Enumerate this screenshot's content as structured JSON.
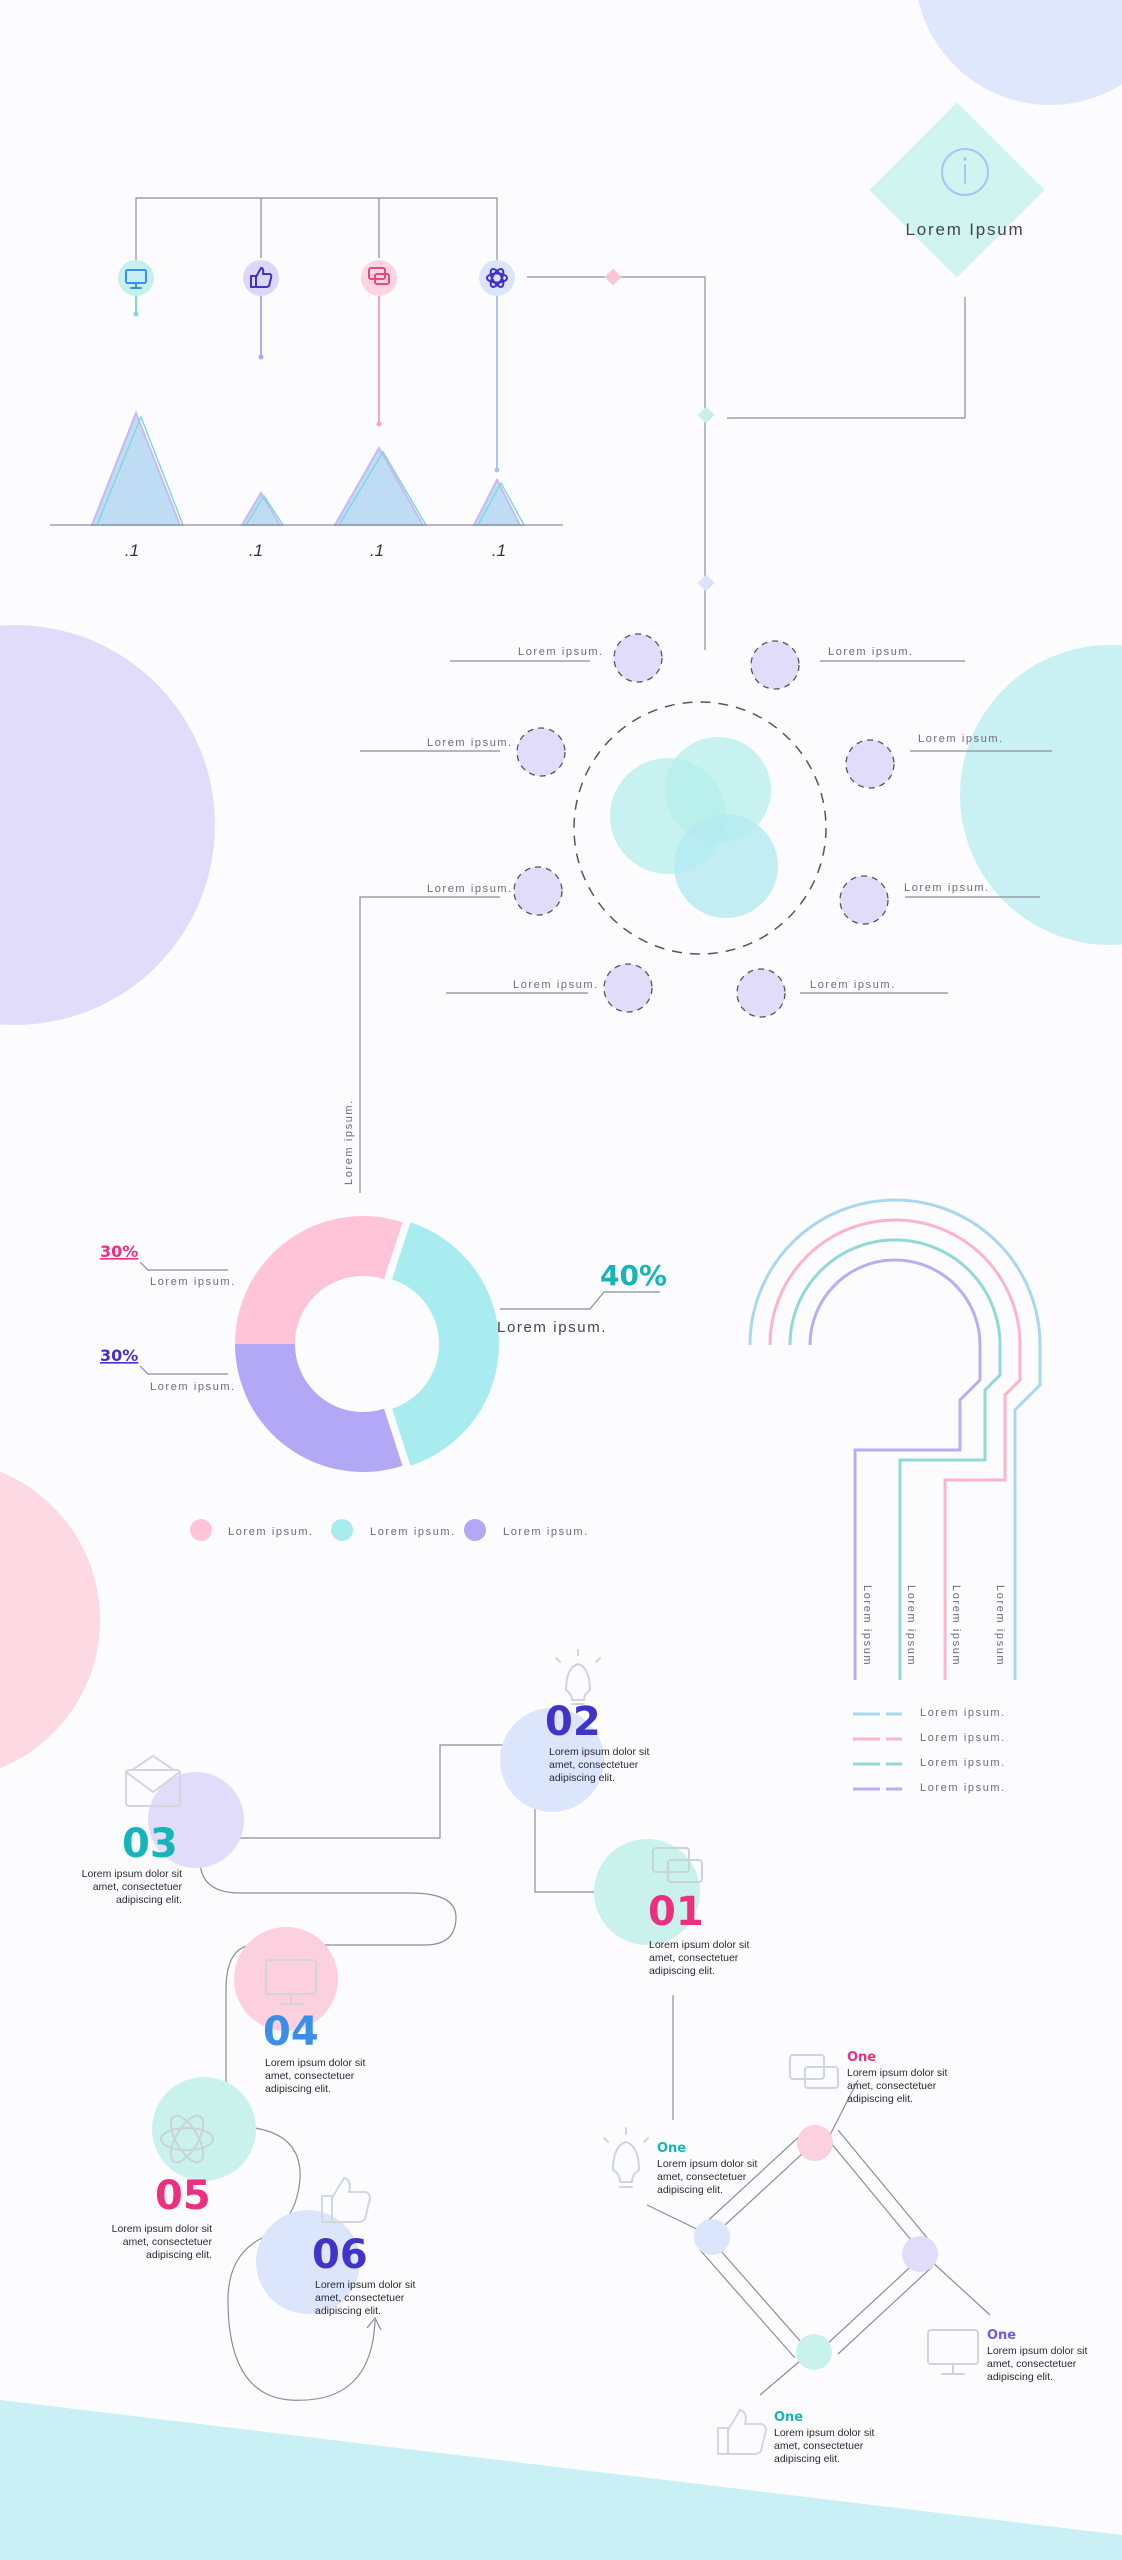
{
  "colors": {
    "pink": "#ff9fbf",
    "teal": "#7fd8dc",
    "lavender": "#a79cf2",
    "blue": "#a9c4f5",
    "num_teal": "#15b4b8",
    "num_pink": "#ec2f7f",
    "num_blue": "#3a8fe8",
    "num_indigo": "#4132c8"
  },
  "header_diamond": {
    "title": "Lorem Ipsum",
    "icon": "info-icon"
  },
  "triangle_chart": {
    "icons": [
      "monitor-icon",
      "thumbs-up-icon",
      "chat-icon",
      "atom-icon"
    ],
    "tick_labels": [
      ".1",
      ".1",
      ".1",
      ".1"
    ]
  },
  "ring_labels": [
    "Lorem ipsum.",
    "Lorem ipsum.",
    "Lorem ipsum.",
    "Lorem ipsum.",
    "Lorem ipsum.",
    "Lorem ipsum.",
    "Lorem ipsum.",
    "Lorem ipsum."
  ],
  "vertical_label": "Lorem ipsum.",
  "donut": {
    "slices": [
      {
        "value": 30,
        "label": "30%",
        "desc": "Lorem ipsum.",
        "color": "#ffc4d8"
      },
      {
        "value": 40,
        "label": "40%",
        "desc": "Lorem ipsum.",
        "color": "#a8ecef"
      },
      {
        "value": 30,
        "label": "30%",
        "desc": "Lorem ipsum.",
        "color": "#b3a8f5"
      }
    ],
    "legend": [
      "Lorem ipsum.",
      "Lorem ipsum.",
      "Lorem ipsum."
    ]
  },
  "arches": {
    "labels": [
      "Lorem ipsum",
      "Lorem ipsum",
      "Lorem ipsum",
      "Lorem ipsum"
    ],
    "legend": [
      "Lorem ipsum.",
      "Lorem ipsum.",
      "Lorem ipsum.",
      "Lorem ipsum."
    ]
  },
  "steps": [
    {
      "num": "02",
      "line1": "Lorem ipsum dolor sit",
      "line2": "amet, consectetuer",
      "line3": "adipiscing elit.",
      "icon": "lightbulb-icon"
    },
    {
      "num": "03",
      "line1": "Lorem ipsum dolor sit",
      "line2": "amet, consectetuer",
      "line3": "adipiscing elit.",
      "icon": "envelope-icon"
    },
    {
      "num": "01",
      "line1": "Lorem ipsum dolor sit",
      "line2": "amet, consectetuer",
      "line3": "adipiscing elit.",
      "icon": "chat-icon"
    },
    {
      "num": "04",
      "line1": "Lorem ipsum dolor sit",
      "line2": "amet, consectetuer",
      "line3": "adipiscing elit.",
      "icon": "monitor-icon"
    },
    {
      "num": "05",
      "line1": "Lorem ipsum dolor sit",
      "line2": "amet, consectetuer",
      "line3": "adipiscing elit.",
      "icon": "atom-icon"
    },
    {
      "num": "06",
      "line1": "Lorem ipsum dolor sit",
      "line2": "amet, consectetuer",
      "line3": "adipiscing elit.",
      "icon": "thumbs-up-icon"
    }
  ],
  "diamond_items": [
    {
      "title": "One",
      "line1": "Lorem ipsum dolor sit",
      "line2": "amet, consectetuer",
      "line3": "adipiscing elit.",
      "icon": "chat-icon"
    },
    {
      "title": "One",
      "line1": "Lorem ipsum dolor sit",
      "line2": "amet, consectetuer",
      "line3": "adipiscing elit.",
      "icon": "lightbulb-icon"
    },
    {
      "title": "One",
      "line1": "Lorem ipsum dolor sit",
      "line2": "amet, consectetuer",
      "line3": "adipiscing elit.",
      "icon": "monitor-icon"
    },
    {
      "title": "One",
      "line1": "Lorem ipsum dolor sit",
      "line2": "amet, consectetuer",
      "line3": "adipiscing elit.",
      "icon": "thumbs-up-icon"
    }
  ]
}
